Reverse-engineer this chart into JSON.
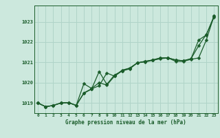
{
  "title": "Graphe pression niveau de la mer (hPa)",
  "bg_color": "#cce8dd",
  "grid_color": "#b0d4c8",
  "line_color": "#1a5c2a",
  "xlim": [
    -0.5,
    23.5
  ],
  "ylim": [
    1018.5,
    1023.8
  ],
  "yticks": [
    1019,
    1020,
    1021,
    1022,
    1023
  ],
  "xticks": [
    0,
    1,
    2,
    3,
    4,
    5,
    6,
    7,
    8,
    9,
    10,
    11,
    12,
    13,
    14,
    15,
    16,
    17,
    18,
    19,
    20,
    21,
    22,
    23
  ],
  "series1_x": [
    0,
    1,
    2,
    3,
    4,
    5,
    6,
    7,
    8,
    9,
    10,
    11,
    12,
    13,
    14,
    15,
    16,
    17,
    18,
    19,
    20,
    21,
    22,
    23
  ],
  "series1_y": [
    1019.0,
    1018.82,
    1018.88,
    1019.0,
    1019.02,
    1018.88,
    1019.48,
    1019.68,
    1020.55,
    1019.92,
    1020.38,
    1020.58,
    1020.72,
    1020.98,
    1021.05,
    1021.12,
    1021.22,
    1021.22,
    1021.12,
    1021.08,
    1021.18,
    1022.1,
    1022.35,
    1023.28
  ],
  "series2_x": [
    0,
    1,
    2,
    3,
    4,
    5,
    6,
    7,
    8,
    9,
    10,
    11,
    12,
    13,
    14,
    15,
    16,
    17,
    18,
    19,
    20,
    21,
    22,
    23
  ],
  "series2_y": [
    1019.0,
    1018.82,
    1018.88,
    1019.0,
    1019.02,
    1018.88,
    1019.5,
    1019.7,
    1019.85,
    1020.48,
    1020.32,
    1020.62,
    1020.72,
    1020.98,
    1021.05,
    1021.12,
    1021.22,
    1021.22,
    1021.12,
    1021.08,
    1021.18,
    1021.82,
    1022.38,
    1023.22
  ],
  "series3_x": [
    0,
    1,
    2,
    3,
    4,
    5,
    6,
    7,
    8,
    9,
    10,
    11,
    12,
    13,
    14,
    15,
    16,
    17,
    18,
    19,
    20,
    21,
    22,
    23
  ],
  "series3_y": [
    1019.0,
    1018.82,
    1018.88,
    1019.0,
    1019.02,
    1018.88,
    1019.95,
    1019.72,
    1020.0,
    1019.88,
    1020.32,
    1020.58,
    1020.68,
    1020.98,
    1021.02,
    1021.1,
    1021.18,
    1021.22,
    1021.05,
    1021.05,
    1021.15,
    1021.22,
    1022.1,
    1023.28
  ]
}
